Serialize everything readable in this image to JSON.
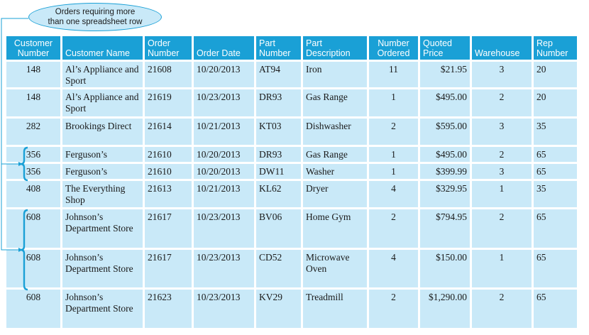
{
  "callout": {
    "line1": "Orders requiring more",
    "line2": "than one spreadsheet row"
  },
  "columns": [
    {
      "key": "cust",
      "label": "Customer Number"
    },
    {
      "key": "name",
      "label": "Customer Name"
    },
    {
      "key": "order",
      "label": "Order Number"
    },
    {
      "key": "date",
      "label": "Order Date"
    },
    {
      "key": "part",
      "label": "Part Number"
    },
    {
      "key": "desc",
      "label": "Part Description"
    },
    {
      "key": "ordered",
      "label": "Number Ordered"
    },
    {
      "key": "price",
      "label": "Quoted Price"
    },
    {
      "key": "wh",
      "label": "Warehouse"
    },
    {
      "key": "rep",
      "label": "Rep Number"
    }
  ],
  "rows": [
    [
      "148",
      "Al’s Appliance and Sport",
      "21608",
      "10/20/2013",
      "AT94",
      "Iron",
      "11",
      "$21.95",
      "3",
      "20"
    ],
    [
      "148",
      "Al’s Appliance and Sport",
      "21619",
      "10/23/2013",
      "DR93",
      "Gas Range",
      "1",
      "$495.00",
      "2",
      "20"
    ],
    [
      "282",
      "Brookings Direct",
      "21614",
      "10/21/2013",
      "KT03",
      "Dishwasher",
      "2",
      "$595.00",
      "3",
      "35"
    ],
    [
      "356",
      "Ferguson’s",
      "21610",
      "10/20/2013",
      "DR93",
      "Gas Range",
      "1",
      "$495.00",
      "2",
      "65"
    ],
    [
      "356",
      "Ferguson’s",
      "21610",
      "10/20/2013",
      "DW11",
      "Washer",
      "1",
      "$399.99",
      "3",
      "65"
    ],
    [
      "408",
      "The Everything Shop",
      "21613",
      "10/21/2013",
      "KL62",
      "Dryer",
      "4",
      "$329.95",
      "1",
      "35"
    ],
    [
      "608",
      "Johnson’s Department Store",
      "21617",
      "10/23/2013",
      "BV06",
      "Home Gym",
      "2",
      "$794.95",
      "2",
      "65"
    ],
    [
      "608",
      "Johnson’s Department Store",
      "21617",
      "10/23/2013",
      "CD52",
      "Microwave Oven",
      "4",
      "$150.00",
      "1",
      "65"
    ],
    [
      "608",
      "Johnson’s Department Store",
      "21623",
      "10/23/2013",
      "KV29",
      "Treadmill",
      "2",
      "$1,290.00",
      "2",
      "65"
    ]
  ],
  "colors": {
    "header": "#1aa0d6",
    "cell": "#c9e9f8",
    "bracket": "#1aa0d6"
  }
}
